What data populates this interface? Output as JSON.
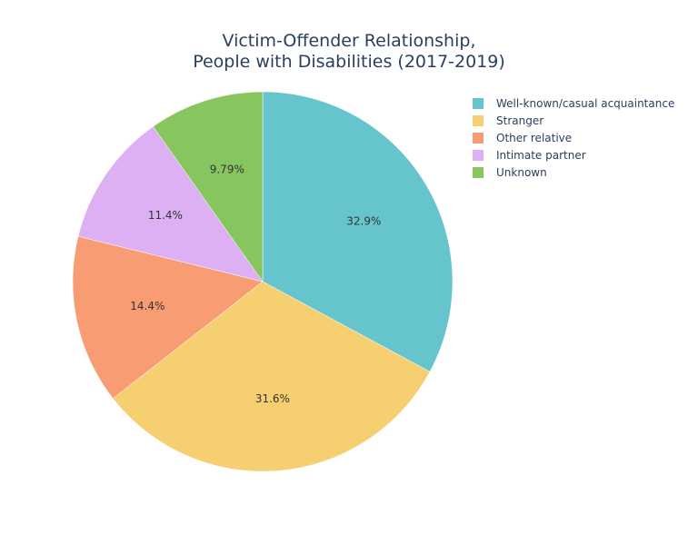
{
  "chart_data": {
    "type": "pie",
    "title": [
      "Victim-Offender Relationship,",
      "People with Disabilities (2017-2019)"
    ],
    "slices": [
      {
        "label": "Well-known/casual acquaintance",
        "value": 32.9,
        "text": "32.9%",
        "color": "#66c5cc"
      },
      {
        "label": "Stranger",
        "value": 31.6,
        "text": "31.6%",
        "color": "#f6cf71"
      },
      {
        "label": "Other relative",
        "value": 14.4,
        "text": "14.4%",
        "color": "#f89c74"
      },
      {
        "label": "Intimate partner",
        "value": 11.4,
        "text": "11.4%",
        "color": "#dcb0f2"
      },
      {
        "label": "Unknown",
        "value": 9.79,
        "text": "9.79%",
        "color": "#87c55f"
      }
    ],
    "direction": "clockwise",
    "legend_position": "top-right"
  }
}
